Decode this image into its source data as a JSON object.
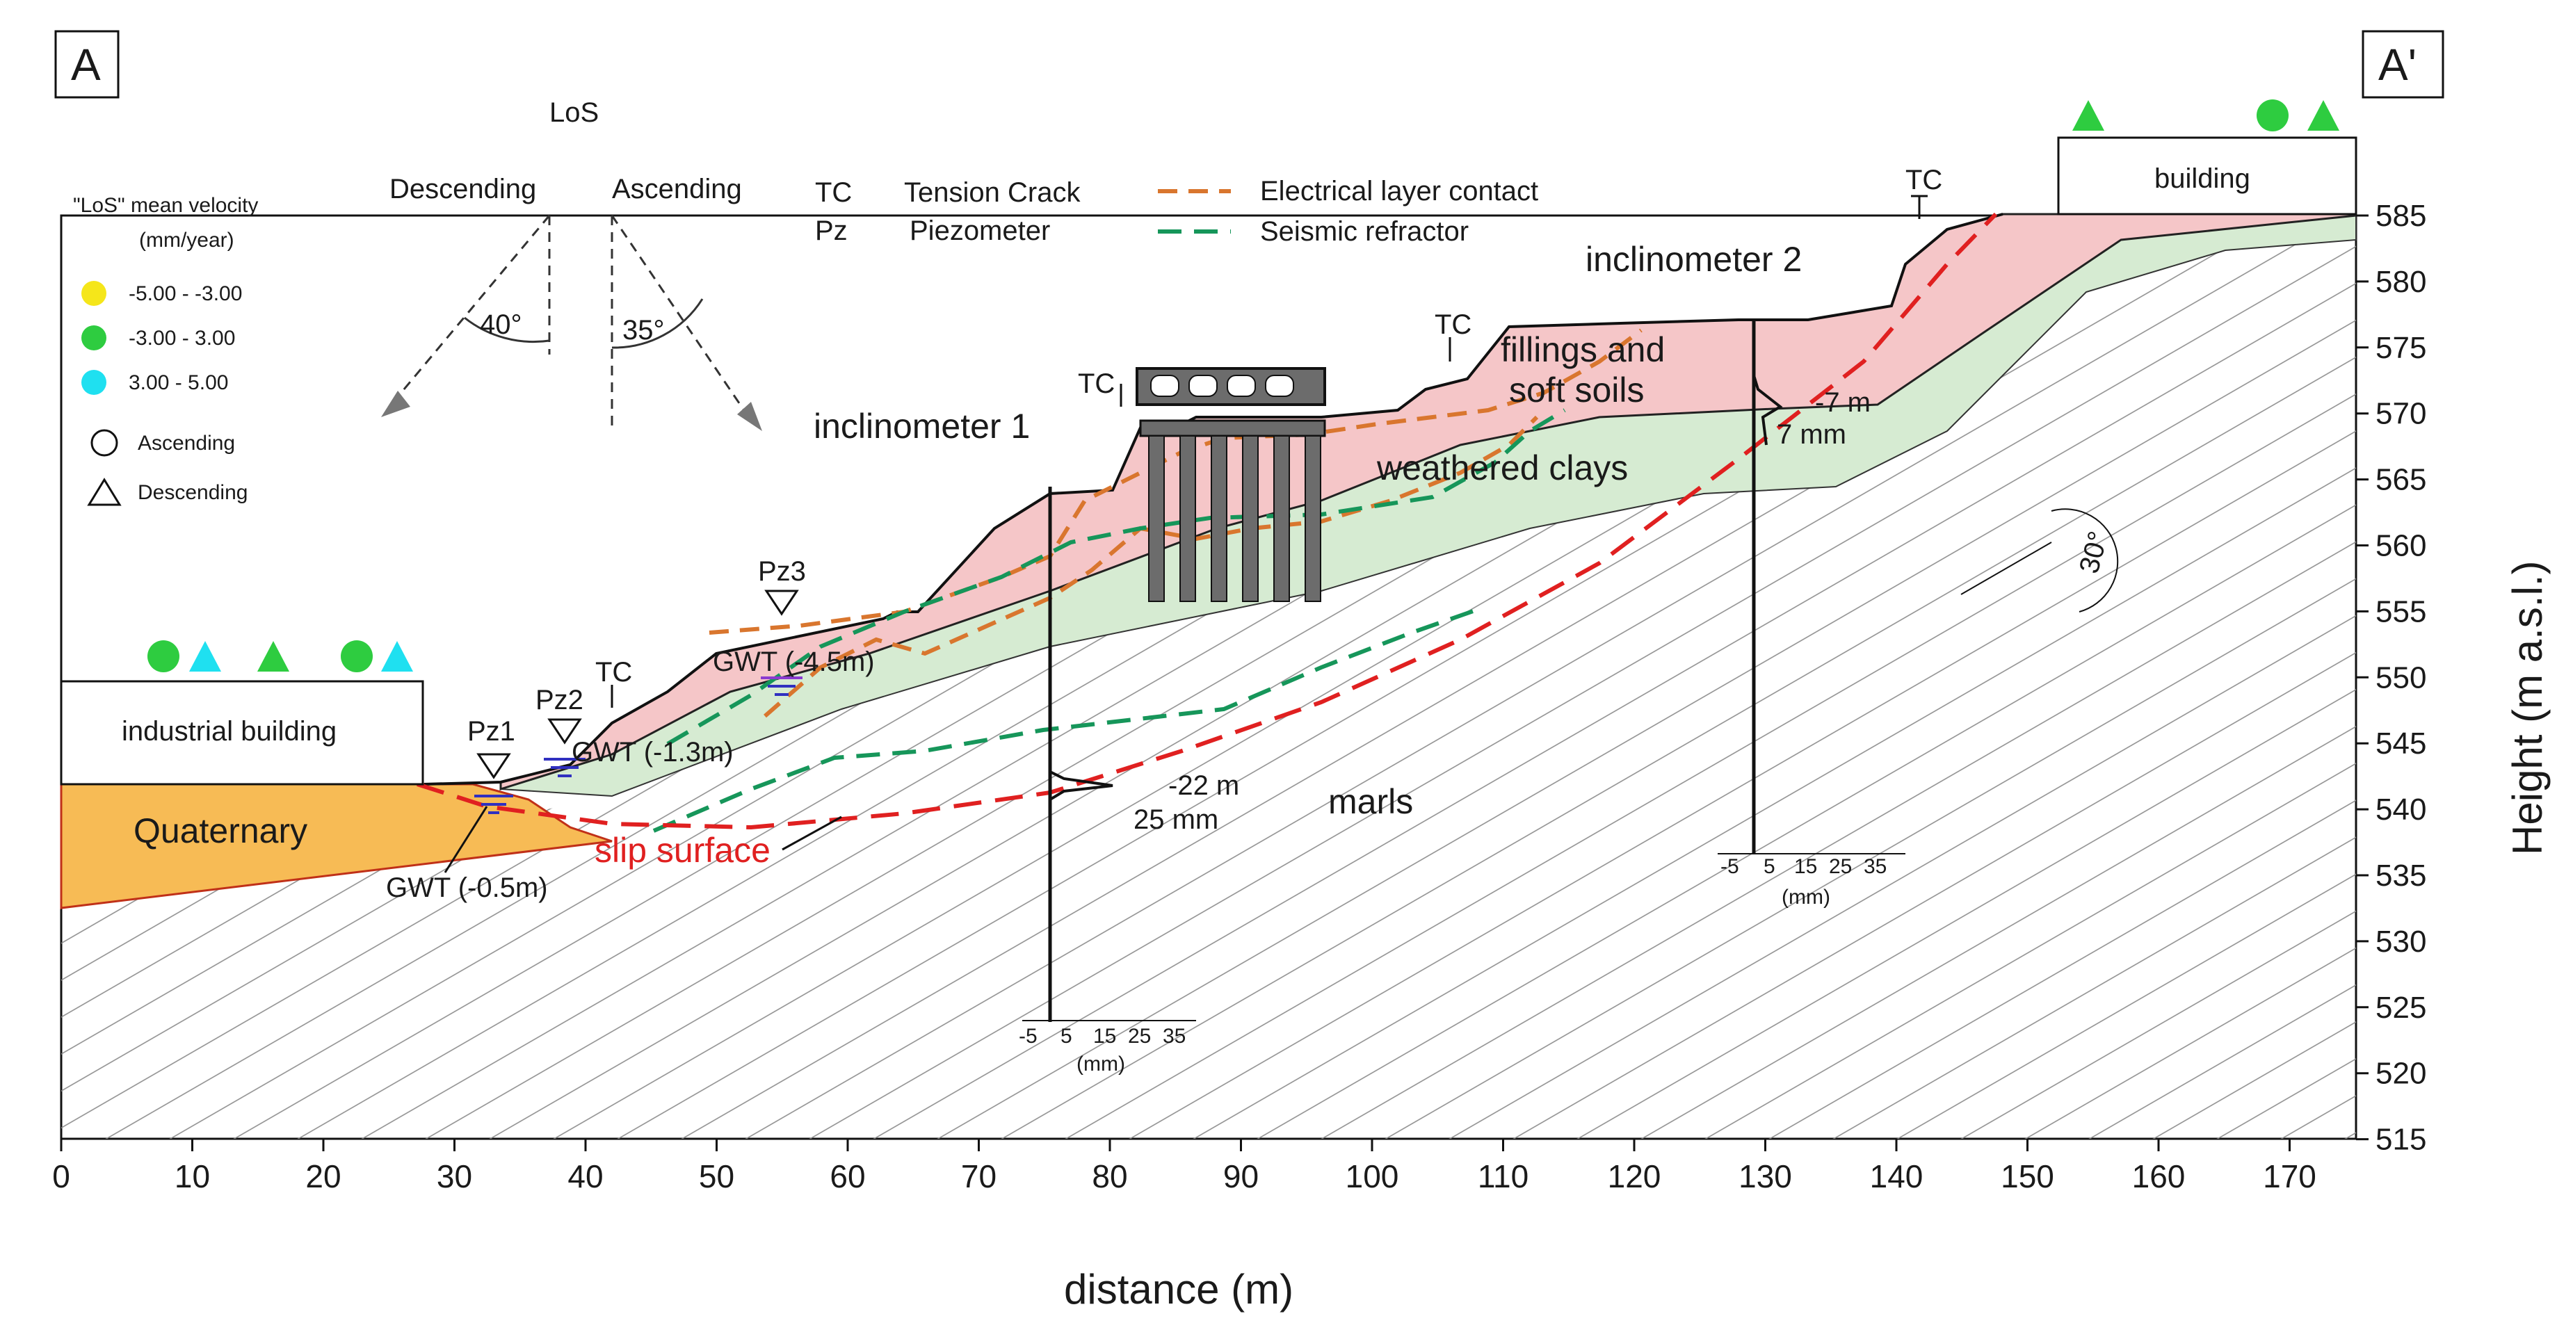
{
  "panel": {
    "left_label": "A",
    "right_label": "A'"
  },
  "axes": {
    "x_title": "distance (m)",
    "y_title": "Height (m a.s.l.)",
    "x_ticks": [
      "0",
      "10",
      "20",
      "30",
      "40",
      "50",
      "60",
      "70",
      "80",
      "90",
      "100",
      "110",
      "120",
      "130",
      "140",
      "150",
      "160",
      "170"
    ],
    "y_ticks": [
      "585",
      "580",
      "575",
      "570",
      "565",
      "560",
      "555",
      "550",
      "545",
      "540",
      "535",
      "530",
      "525",
      "520",
      "515"
    ]
  },
  "los_legend": {
    "title": "LoS",
    "descending": "Descending",
    "ascending": "Ascending",
    "angle_desc": "40°",
    "angle_asc": "35°"
  },
  "velocity_legend": {
    "title_line1": "\"LoS\" mean velocity",
    "title_line2": "(mm/year)",
    "items": [
      {
        "label": "-5.00 - -3.00",
        "color": "#f5e61a"
      },
      {
        "label": "-3.00 - 3.00",
        "color": "#2ecc40"
      },
      {
        "label": "3.00 - 5.00",
        "color": "#1fe0f0"
      }
    ],
    "ascending": "Ascending",
    "descending": "Descending"
  },
  "symbol_legend": {
    "tc_abbr": "TC",
    "tc_text": "Tension Crack",
    "pz_abbr": "Pz",
    "pz_text": "Piezometer",
    "electrical": "Electrical layer contact",
    "electrical_color": "#d9762e",
    "seismic": "Seismic refractor",
    "seismic_color": "#16965a"
  },
  "buildings": {
    "industrial": "industrial building",
    "building": "building"
  },
  "layers": {
    "quaternary": "Quaternary",
    "fillings_line1": "fillings and",
    "fillings_line2": "soft soils",
    "weathered": "weathered clays",
    "marls": "marls",
    "slip": "slip surface",
    "fill_color": "#f5c6c8",
    "clay_color": "#d6ebd2",
    "quaternary_color": "#f7bb55",
    "slip_color": "#e02020"
  },
  "instruments": {
    "inclinometer1": "inclinometer 1",
    "inclinometer2": "inclinometer 2",
    "inc1_depth": "-22 m",
    "inc1_disp": "25 mm",
    "inc2_depth": "-7 m",
    "inc2_disp": "7 mm",
    "scale_ticks": [
      "-5",
      "5",
      "15",
      "25",
      "35"
    ],
    "scale_unit": "(mm)",
    "pz1": "Pz1",
    "pz2": "Pz2",
    "pz3": "Pz3",
    "gwt1": "GWT (-0.5m)",
    "gwt2": "GWT (-1.3m)",
    "gwt3": "GWT (-4.5m)",
    "tc": "TC",
    "dip": "30°"
  }
}
